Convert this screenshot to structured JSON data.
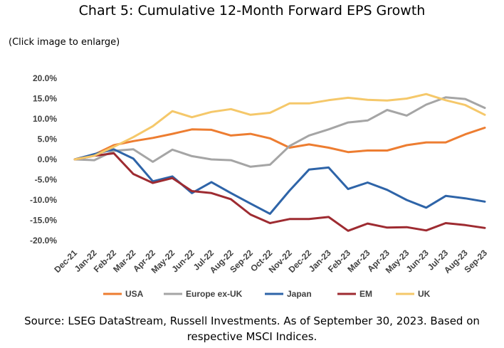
{
  "page": {
    "title": "Chart 5: Cumulative 12-Month Forward EPS Growth",
    "subtitle": "(Click image to enlarge)",
    "source_line1": "Source: LSEG DataStream, Russell Investments. As of September 30, 2023. Based on",
    "source_line2": "respective MSCI Indices."
  },
  "chart_data": {
    "type": "line",
    "title": "Chart 5: Cumulative 12-Month Forward EPS Growth",
    "x": [
      "Dec-21",
      "Jan-22",
      "Feb-22",
      "Mar-22",
      "Apr-22",
      "May-22",
      "Jun-22",
      "Jul-22",
      "Aug-22",
      "Sep-22",
      "Oct-22",
      "Nov-22",
      "Dec-22",
      "Jan-23",
      "Feb-23",
      "Mar-23",
      "Apr-23",
      "May-23",
      "Jun-23",
      "Jul-23",
      "Aug-23",
      "Sep-23"
    ],
    "y_ticks": [
      "20.0%",
      "15.0%",
      "10.0%",
      "5.0%",
      "0.0%",
      "-5.0%",
      "-10.0%",
      "-15.0%",
      "-20.0%"
    ],
    "ylim": [
      -20,
      20
    ],
    "grid": false,
    "legend_position": "bottom",
    "series": [
      {
        "name": "USA",
        "color": "#ED7D31",
        "values": [
          0.0,
          1.2,
          3.5,
          4.5,
          5.3,
          6.3,
          7.4,
          7.3,
          5.9,
          6.3,
          5.2,
          2.9,
          3.7,
          2.9,
          1.8,
          2.2,
          2.2,
          3.5,
          4.2,
          4.2,
          6.2,
          7.8
        ]
      },
      {
        "name": "Europe ex-UK",
        "color": "#A5A5A5",
        "values": [
          0.0,
          -0.2,
          2.1,
          2.5,
          -0.6,
          2.4,
          0.8,
          0.0,
          -0.2,
          -1.8,
          -1.3,
          3.3,
          5.9,
          7.4,
          9.1,
          9.6,
          12.2,
          10.8,
          13.5,
          15.3,
          14.9,
          12.7
        ]
      },
      {
        "name": "Japan",
        "color": "#2E64A8",
        "values": [
          0.0,
          1.3,
          2.5,
          0.2,
          -5.4,
          -4.2,
          -8.3,
          -5.6,
          -8.3,
          -10.9,
          -13.4,
          -7.7,
          -2.5,
          -2.0,
          -7.3,
          -5.7,
          -7.5,
          -10.0,
          -11.9,
          -9.0,
          -9.6,
          -10.4
        ]
      },
      {
        "name": "EM",
        "color": "#9E2B31",
        "values": [
          0.0,
          0.9,
          1.5,
          -3.6,
          -5.8,
          -4.6,
          -7.8,
          -8.3,
          -9.8,
          -13.6,
          -15.7,
          -14.7,
          -14.7,
          -14.2,
          -17.6,
          -15.8,
          -16.8,
          -16.7,
          -17.5,
          -15.7,
          -16.2,
          -16.9
        ]
      },
      {
        "name": "UK",
        "color": "#F5C86A",
        "values": [
          0.0,
          0.9,
          3.1,
          5.5,
          8.2,
          11.9,
          10.4,
          11.7,
          12.4,
          11.0,
          11.5,
          13.8,
          13.8,
          14.6,
          15.2,
          14.7,
          14.5,
          15.0,
          16.1,
          14.6,
          13.4,
          11.0
        ]
      }
    ]
  }
}
